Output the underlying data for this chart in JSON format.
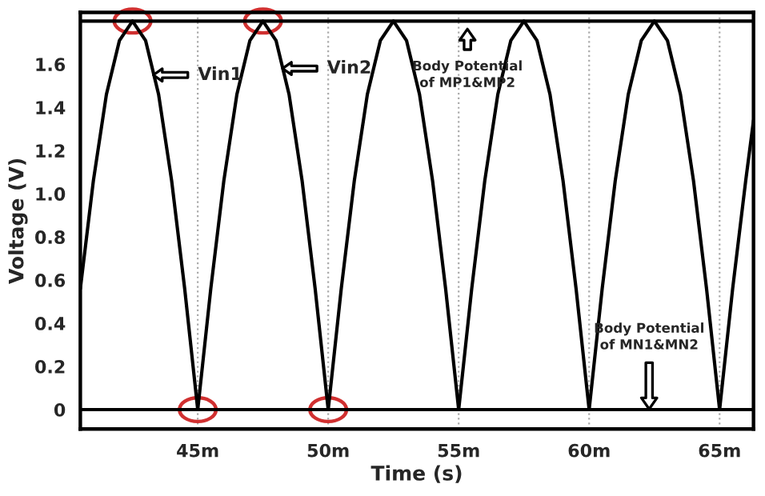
{
  "chart_data": {
    "type": "line",
    "xlabel": "Time (s)",
    "ylabel": "Voltage (V)",
    "series": [
      {
        "color": "#000000",
        "x": [
          40.5,
          41.0,
          41.5,
          42.0,
          42.5,
          43.0,
          43.5,
          44.0,
          44.5,
          45.0,
          47.5,
          50.0,
          50.5,
          51.0,
          51.5,
          52.0,
          52.5,
          53.0,
          53.5,
          54.0,
          54.5,
          55.0,
          57.5,
          60.0,
          60.5,
          61.0,
          61.5,
          62.0,
          62.5,
          63.0,
          63.5,
          64.0,
          64.5,
          65.0
        ],
        "values": [
          0.56,
          1.06,
          1.46,
          1.71,
          1.8,
          1.71,
          1.46,
          1.06,
          0.56,
          0,
          null,
          0,
          0.56,
          1.06,
          1.46,
          1.71,
          1.8,
          1.71,
          1.46,
          1.06,
          0.56,
          0,
          null,
          0,
          0.56,
          1.06,
          1.46,
          1.71,
          1.8,
          1.71,
          1.46,
          1.06,
          0.56,
          0
        ]
      },
      {
        "color": "#000000",
        "x": [
          45.0,
          45.5,
          46.0,
          46.5,
          47.0,
          47.5,
          48.0,
          48.5,
          49.0,
          49.5,
          50.0,
          52.5,
          55.0,
          55.5,
          56.0,
          56.5,
          57.0,
          57.5,
          58.0,
          58.5,
          59.0,
          59.5,
          60.0,
          62.5,
          65.0,
          65.5,
          66.0,
          66.3
        ],
        "values": [
          0,
          0.56,
          1.06,
          1.46,
          1.71,
          1.8,
          1.71,
          1.46,
          1.06,
          0.56,
          0,
          null,
          0,
          0.56,
          1.06,
          1.46,
          1.71,
          1.8,
          1.71,
          1.46,
          1.06,
          0.56,
          0,
          null,
          0,
          0.56,
          1.06,
          1.34
        ]
      }
    ],
    "xlim": [
      40.5,
      66.3
    ],
    "ylim": [
      -0.09,
      1.84
    ],
    "xticks": [
      {
        "value": 45,
        "label": "45m"
      },
      {
        "value": 50,
        "label": "50m"
      },
      {
        "value": 55,
        "label": "55m"
      },
      {
        "value": 60,
        "label": "60m"
      },
      {
        "value": 65,
        "label": "65m"
      }
    ],
    "yticks": [
      0,
      0.2,
      0.4,
      0.6,
      0.8,
      {
        "value": 1,
        "label": "1.0"
      },
      1.2,
      1.4,
      1.6
    ],
    "ref_lines": [
      {
        "axis": "y",
        "value": 1.8,
        "color": "#000000"
      },
      {
        "axis": "y",
        "value": 0,
        "color": "#000000"
      }
    ],
    "annotations": [
      {
        "text": "Vin1",
        "x": 43.3,
        "y": 1.55
      },
      {
        "text": "Vin2",
        "x": 48.25,
        "y": 1.58
      },
      "Body Potential\nof MP1&MP2",
      "Body Potential\nof MN1&MN2"
    ],
    "grid": "x",
    "legend": false,
    "marker": "none",
    "line_style": "solid"
  }
}
